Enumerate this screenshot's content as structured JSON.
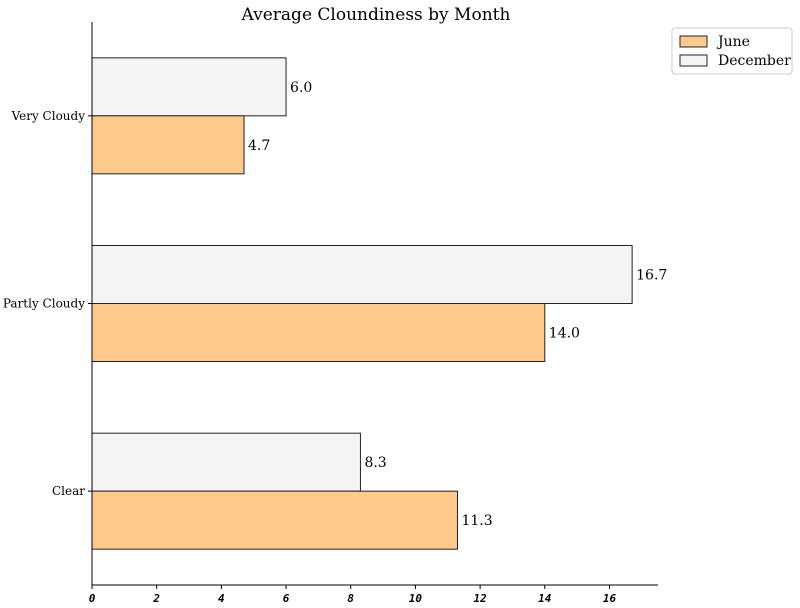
{
  "chart_data": {
    "type": "bar",
    "orientation": "horizontal",
    "title": "Average Cloundiness by Month",
    "xlabel": "",
    "ylabel": "",
    "categories": [
      "Very Cloudy",
      "Partly Cloudy",
      "Clear"
    ],
    "series": [
      {
        "name": "June",
        "values": [
          4.7,
          14.0,
          11.3
        ],
        "labels": [
          "4.7",
          "14.0",
          "11.3"
        ],
        "color": "#fdca8c"
      },
      {
        "name": "December",
        "values": [
          6.0,
          16.7,
          8.3
        ],
        "labels": [
          "6.0",
          "16.7",
          "8.3"
        ],
        "color": "#f4f4f4"
      }
    ],
    "xlim": [
      0,
      17.5
    ],
    "xticks": [
      0,
      2,
      4,
      6,
      8,
      10,
      12,
      14,
      16
    ],
    "xtick_labels": [
      "0",
      "2",
      "4",
      "6",
      "8",
      "10",
      "12",
      "14",
      "16"
    ],
    "grid": false,
    "legend_position": "top-right"
  }
}
